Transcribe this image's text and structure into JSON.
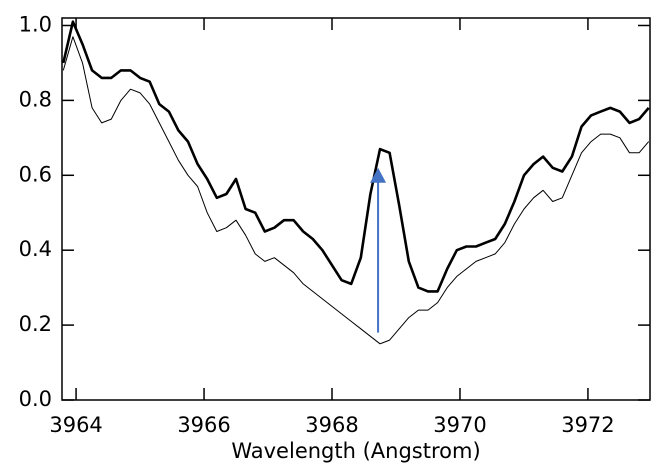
{
  "chart_data": {
    "type": "line",
    "x_label": "Wavelength (Angstrom)",
    "x": [
      3963.8,
      3963.95,
      3964.1,
      3964.25,
      3964.4,
      3964.55,
      3964.7,
      3964.85,
      3965,
      3965.15,
      3965.3,
      3965.45,
      3965.6,
      3965.75,
      3965.9,
      3966.05,
      3966.2,
      3966.35,
      3966.5,
      3966.65,
      3966.8,
      3966.95,
      3967.1,
      3967.25,
      3967.4,
      3967.55,
      3967.7,
      3967.85,
      3968,
      3968.15,
      3968.3,
      3968.45,
      3968.6,
      3968.75,
      3968.9,
      3969.05,
      3969.2,
      3969.35,
      3969.5,
      3969.65,
      3969.8,
      3969.95,
      3970.1,
      3970.25,
      3970.4,
      3970.55,
      3970.7,
      3970.85,
      3971,
      3971.15,
      3971.3,
      3971.45,
      3971.6,
      3971.75,
      3971.9,
      3972.05,
      3972.2,
      3972.35,
      3972.5,
      3972.65,
      3972.8,
      3972.95
    ],
    "series": [
      {
        "color": "#000000",
        "line_width": 2.6,
        "values": [
          0.9,
          1.01,
          0.95,
          0.88,
          0.86,
          0.86,
          0.88,
          0.88,
          0.86,
          0.85,
          0.79,
          0.77,
          0.72,
          0.69,
          0.63,
          0.59,
          0.54,
          0.55,
          0.59,
          0.51,
          0.5,
          0.45,
          0.46,
          0.48,
          0.48,
          0.45,
          0.43,
          0.4,
          0.36,
          0.32,
          0.31,
          0.38,
          0.55,
          0.67,
          0.66,
          0.52,
          0.37,
          0.3,
          0.29,
          0.29,
          0.35,
          0.4,
          0.41,
          0.41,
          0.42,
          0.43,
          0.47,
          0.53,
          0.6,
          0.63,
          0.65,
          0.62,
          0.61,
          0.65,
          0.73,
          0.76,
          0.77,
          0.78,
          0.77,
          0.74,
          0.75,
          0.78
        ]
      },
      {
        "color": "#000000",
        "line_width": 1,
        "values": [
          0.88,
          0.97,
          0.9,
          0.78,
          0.74,
          0.75,
          0.8,
          0.83,
          0.82,
          0.79,
          0.74,
          0.69,
          0.64,
          0.6,
          0.57,
          0.5,
          0.45,
          0.46,
          0.48,
          0.44,
          0.39,
          0.37,
          0.38,
          0.36,
          0.34,
          0.31,
          0.29,
          0.27,
          0.25,
          0.23,
          0.21,
          0.19,
          0.17,
          0.15,
          0.16,
          0.19,
          0.22,
          0.24,
          0.24,
          0.26,
          0.3,
          0.33,
          0.35,
          0.37,
          0.38,
          0.39,
          0.42,
          0.47,
          0.51,
          0.54,
          0.56,
          0.53,
          0.54,
          0.6,
          0.66,
          0.69,
          0.71,
          0.71,
          0.7,
          0.66,
          0.66,
          0.69
        ]
      }
    ],
    "arrow": {
      "x": 3968.72,
      "from": 0.18,
      "to": 0.62,
      "color": "#4472c4"
    },
    "xlim": [
      3963.78,
      3972.97
    ],
    "xticks": [
      3964,
      3966,
      3968,
      3970,
      3972
    ],
    "ylim": [
      0,
      1.02
    ],
    "yticks": [
      {
        "value": 0,
        "label": "0.0"
      },
      0.2,
      0.4,
      0.6,
      0.8,
      {
        "value": 1,
        "label": "1.0"
      }
    ]
  }
}
